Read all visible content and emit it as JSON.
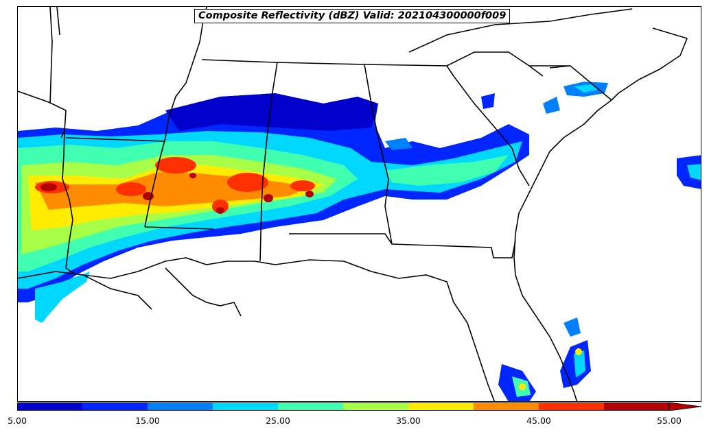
{
  "title": "Composite Reflectivity (dBZ) Valid: 202104300000f009",
  "colorbar": {
    "tick_labels": [
      "5.00",
      "15.00",
      "25.00",
      "35.00",
      "45.00",
      "55.00"
    ],
    "extend": "max",
    "bins": [
      {
        "from": 5,
        "to": 10,
        "color": "#0000cd"
      },
      {
        "from": 10,
        "to": 15,
        "color": "#0026ff"
      },
      {
        "from": 15,
        "to": 20,
        "color": "#0080ff"
      },
      {
        "from": 20,
        "to": 25,
        "color": "#00d8ff"
      },
      {
        "from": 25,
        "to": 30,
        "color": "#40ffb0"
      },
      {
        "from": 30,
        "to": 35,
        "color": "#a8ff48"
      },
      {
        "from": 35,
        "to": 40,
        "color": "#ffec00"
      },
      {
        "from": 40,
        "to": 45,
        "color": "#ff8c00"
      },
      {
        "from": 45,
        "to": 50,
        "color": "#ff3000"
      },
      {
        "from": 50,
        "to": 55,
        "color": "#b40000"
      }
    ]
  },
  "map": {
    "region": "Southeastern United States",
    "projection_note": "state borders and coastlines in black",
    "colors": {
      "border": "#000000",
      "background": "#ffffff"
    }
  }
}
